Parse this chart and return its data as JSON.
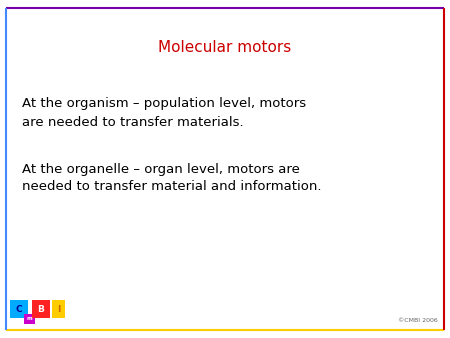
{
  "title": "Molecular motors",
  "title_color": "#cc0000",
  "title_fontsize": 11,
  "body_text_1": "At the organism – population level, motors\nare needed to transfer materials.",
  "body_text_2": "At the organelle – organ level, motors are\nneeded to transfer material and information.",
  "body_color": "#000000",
  "body_fontsize": 9.5,
  "background_color": "#ffffff",
  "border_left_color": "#4488ff",
  "border_top_color": "#7700aa",
  "border_bottom_color": "#ffcc00",
  "border_right_color": "#cc0000",
  "copyright_text": "©CMBI 2006",
  "copyright_color": "#666666",
  "copyright_fontsize": 4.5,
  "logo_C_bg": "#00aaff",
  "logo_C_text": "#000099",
  "logo_m_bg": "#cc00cc",
  "logo_B_bg": "#ff2222",
  "logo_B_text": "#ffffff",
  "logo_I_bg": "#ffcc00",
  "logo_I_text": "#cc6600"
}
